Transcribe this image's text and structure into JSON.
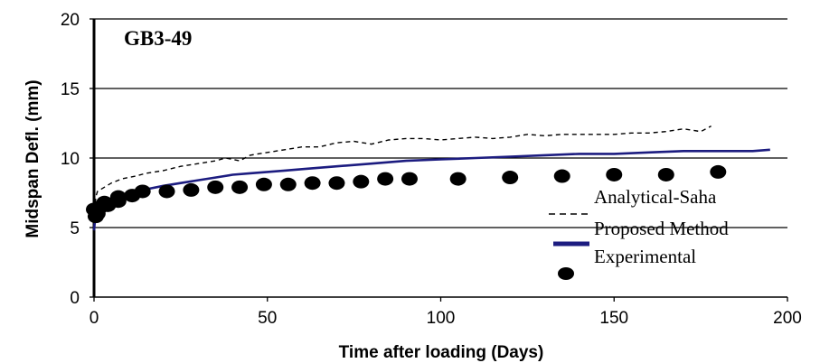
{
  "chart_data": {
    "type": "line",
    "title": "GB3-49",
    "xlabel": "Time after loading (Days)",
    "ylabel": "Midspan Defl. (mm)",
    "xlim": [
      0,
      200
    ],
    "ylim": [
      0,
      20
    ],
    "xticks": [
      "0",
      "50",
      "100",
      "150",
      "200"
    ],
    "yticks": [
      "0",
      "5",
      "10",
      "15",
      "20"
    ],
    "grid": "horizontal",
    "legend_position": "bottom-right, inside plot",
    "series": [
      {
        "name": "Analytical-Saha",
        "style": "dashed",
        "color": "#000000",
        "points": [
          [
            0,
            5.0
          ],
          [
            0.5,
            7.2
          ],
          [
            1,
            7.6
          ],
          [
            3,
            7.9
          ],
          [
            5,
            8.2
          ],
          [
            8,
            8.5
          ],
          [
            12,
            8.7
          ],
          [
            15,
            8.9
          ],
          [
            20,
            9.1
          ],
          [
            25,
            9.4
          ],
          [
            30,
            9.6
          ],
          [
            35,
            9.8
          ],
          [
            38,
            10.0
          ],
          [
            42,
            9.8
          ],
          [
            45,
            10.2
          ],
          [
            50,
            10.4
          ],
          [
            55,
            10.6
          ],
          [
            60,
            10.8
          ],
          [
            65,
            10.8
          ],
          [
            70,
            11.1
          ],
          [
            75,
            11.2
          ],
          [
            80,
            11.0
          ],
          [
            85,
            11.3
          ],
          [
            90,
            11.4
          ],
          [
            95,
            11.4
          ],
          [
            100,
            11.3
          ],
          [
            105,
            11.4
          ],
          [
            110,
            11.5
          ],
          [
            115,
            11.4
          ],
          [
            120,
            11.5
          ],
          [
            125,
            11.7
          ],
          [
            130,
            11.6
          ],
          [
            135,
            11.7
          ],
          [
            140,
            11.7
          ],
          [
            145,
            11.7
          ],
          [
            150,
            11.7
          ],
          [
            155,
            11.8
          ],
          [
            160,
            11.8
          ],
          [
            165,
            11.9
          ],
          [
            170,
            12.1
          ],
          [
            175,
            11.9
          ],
          [
            178,
            12.3
          ]
        ]
      },
      {
        "name": "Proposed Method",
        "style": "solid",
        "color": "#1c1c80",
        "points": [
          [
            0,
            4.8
          ],
          [
            0.5,
            6.1
          ],
          [
            1,
            6.5
          ],
          [
            3,
            6.9
          ],
          [
            5,
            7.1
          ],
          [
            8,
            7.3
          ],
          [
            12,
            7.6
          ],
          [
            16,
            7.8
          ],
          [
            20,
            8.0
          ],
          [
            25,
            8.2
          ],
          [
            30,
            8.4
          ],
          [
            35,
            8.6
          ],
          [
            40,
            8.8
          ],
          [
            45,
            8.9
          ],
          [
            50,
            9.0
          ],
          [
            55,
            9.1
          ],
          [
            60,
            9.2
          ],
          [
            70,
            9.4
          ],
          [
            80,
            9.6
          ],
          [
            90,
            9.8
          ],
          [
            100,
            9.9
          ],
          [
            110,
            10.0
          ],
          [
            120,
            10.1
          ],
          [
            130,
            10.2
          ],
          [
            140,
            10.3
          ],
          [
            150,
            10.3
          ],
          [
            160,
            10.4
          ],
          [
            170,
            10.5
          ],
          [
            180,
            10.5
          ],
          [
            190,
            10.5
          ],
          [
            195,
            10.6
          ]
        ]
      },
      {
        "name": "Experimental",
        "style": "marker",
        "color": "#000000",
        "points": [
          [
            0,
            6.3
          ],
          [
            0.5,
            5.8
          ],
          [
            1,
            6.0
          ],
          [
            2,
            6.5
          ],
          [
            3,
            6.8
          ],
          [
            4,
            6.6
          ],
          [
            7,
            7.2
          ],
          [
            7,
            6.9
          ],
          [
            11,
            7.3
          ],
          [
            14,
            7.6
          ],
          [
            21,
            7.6
          ],
          [
            28,
            7.7
          ],
          [
            35,
            7.9
          ],
          [
            42,
            7.9
          ],
          [
            49,
            8.1
          ],
          [
            56,
            8.1
          ],
          [
            63,
            8.2
          ],
          [
            70,
            8.2
          ],
          [
            77,
            8.3
          ],
          [
            84,
            8.5
          ],
          [
            91,
            8.5
          ],
          [
            105,
            8.5
          ],
          [
            120,
            8.6
          ],
          [
            135,
            8.7
          ],
          [
            150,
            8.8
          ],
          [
            165,
            8.8
          ],
          [
            180,
            9.0
          ]
        ]
      }
    ]
  }
}
